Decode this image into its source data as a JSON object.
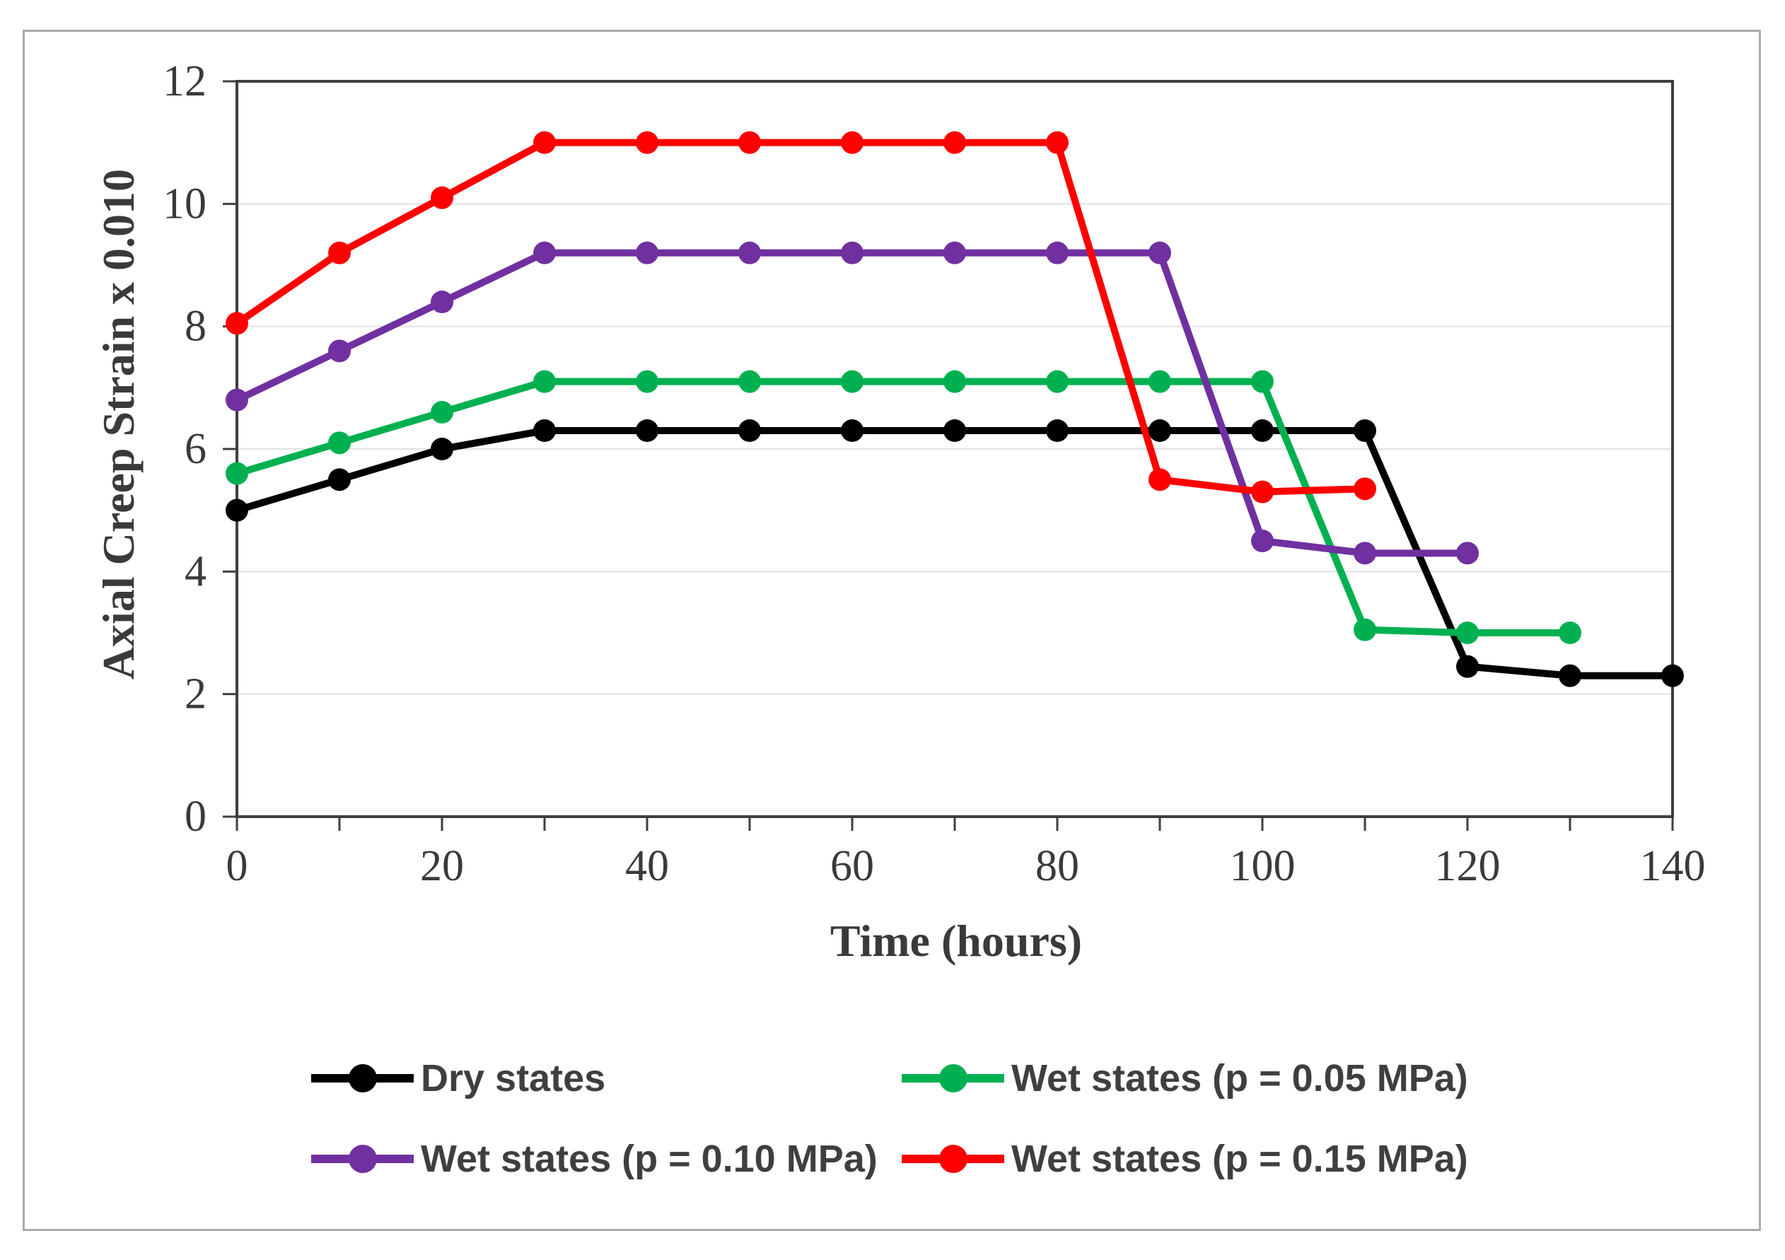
{
  "chart_data": {
    "type": "line",
    "title": "",
    "xlabel": "Time (hours)",
    "ylabel": "Axial Creep Strain x 0.010",
    "xlim": [
      0,
      140
    ],
    "ylim": [
      0,
      12
    ],
    "x_ticks": [
      0,
      20,
      40,
      60,
      80,
      100,
      120,
      140
    ],
    "x_minor_tick_step": 10,
    "y_ticks": [
      0,
      2,
      4,
      6,
      8,
      10,
      12
    ],
    "grid": "horizontal",
    "legend_position": "bottom",
    "colors": {
      "frame": "#3F3F3F",
      "grid": "#E0E0E0",
      "tick": "#3F3F3F",
      "tick_label": "#3A3A3A",
      "figure_border": "#ABABAB"
    },
    "series": [
      {
        "id": "dry-states",
        "name": "Dry states",
        "color": "#000000",
        "x": [
          0,
          10,
          20,
          30,
          40,
          50,
          60,
          70,
          80,
          90,
          100,
          110,
          120,
          130,
          140
        ],
        "y": [
          5.0,
          5.5,
          6.0,
          6.3,
          6.3,
          6.3,
          6.3,
          6.3,
          6.3,
          6.3,
          6.3,
          6.3,
          2.45,
          2.3,
          2.3
        ]
      },
      {
        "id": "wet-states-005",
        "name": "Wet states (p = 0.05 MPa)",
        "color": "#00B050",
        "x": [
          0,
          10,
          20,
          30,
          40,
          50,
          60,
          70,
          80,
          90,
          100,
          110,
          120,
          130
        ],
        "y": [
          5.6,
          6.1,
          6.6,
          7.1,
          7.1,
          7.1,
          7.1,
          7.1,
          7.1,
          7.1,
          7.1,
          3.05,
          3.0,
          3.0
        ]
      },
      {
        "id": "wet-states-010",
        "name": "Wet states (p = 0.10 MPa)",
        "color": "#7030A0",
        "x": [
          0,
          10,
          20,
          30,
          40,
          50,
          60,
          70,
          80,
          90,
          100,
          110,
          120
        ],
        "y": [
          6.8,
          7.6,
          8.4,
          9.2,
          9.2,
          9.2,
          9.2,
          9.2,
          9.2,
          9.2,
          4.5,
          4.3,
          4.3
        ]
      },
      {
        "id": "wet-states-015",
        "name": "Wet states (p = 0.15 MPa)",
        "color": "#FF0000",
        "x": [
          0,
          10,
          20,
          30,
          40,
          50,
          60,
          70,
          80,
          90,
          100,
          110
        ],
        "y": [
          8.05,
          9.2,
          10.1,
          11.0,
          11.0,
          11.0,
          11.0,
          11.0,
          11.0,
          5.5,
          5.3,
          5.35
        ]
      }
    ]
  }
}
